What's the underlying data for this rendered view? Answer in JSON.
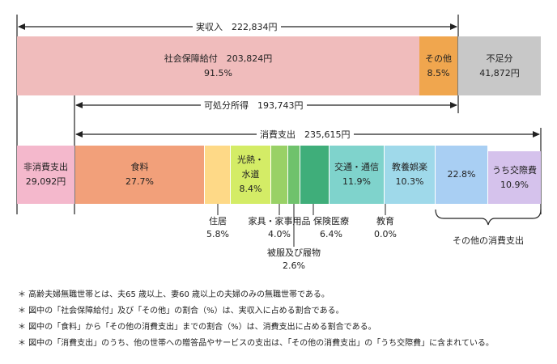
{
  "chart_data": {
    "type": "stacked-horizontal-bar",
    "income_bar": {
      "bracket_label": "実収入　222,834円",
      "segments": [
        {
          "name": "社会保障給付",
          "label": "社会保障給付　203,824円",
          "pct": "91.5%",
          "value": 203824,
          "color": "#f0bcbc"
        },
        {
          "name": "その他",
          "label": "その他",
          "pct": "8.5%",
          "value": 19010,
          "color": "#f0a64e"
        },
        {
          "name": "不足分",
          "label": "不足分",
          "pct": "41,872円",
          "value": 41872,
          "color": "#c8c8c8"
        }
      ]
    },
    "disposable": {
      "bracket_label": "可処分所得　193,743円",
      "value": 193743
    },
    "consumption": {
      "bracket_label": "消費支出　235,615円",
      "value": 235615
    },
    "expense_bar": {
      "segments": [
        {
          "name": "非消費支出",
          "label": "非消費支出",
          "pct": "29,092円",
          "color": "#f4b8cc",
          "kind": "inside"
        },
        {
          "name": "食料",
          "label": "食料",
          "pct": "27.7%",
          "color": "#f2a07a",
          "kind": "inside"
        },
        {
          "name": "住居",
          "label": "住居",
          "pct": "5.8%",
          "color": "#fed987",
          "kind": "callout"
        },
        {
          "name": "光熱・水道",
          "label": "光熱・\n水道",
          "pct": "8.4%",
          "color": "#d4ec66",
          "kind": "inside"
        },
        {
          "name": "家具・家事用品",
          "label": "家具・家事用品",
          "pct": "4.0%",
          "color": "#99d166",
          "kind": "callout"
        },
        {
          "name": "被服及び履物",
          "label": "被服及び履物",
          "pct": "2.6%",
          "color": "#6fc26c",
          "kind": "callout"
        },
        {
          "name": "保険医療",
          "label": "保険医療",
          "pct": "6.4%",
          "color": "#3fae7a",
          "kind": "callout"
        },
        {
          "name": "交通・通信",
          "label": "交通・通信",
          "pct": "11.9%",
          "color": "#7fd3cc",
          "kind": "inside"
        },
        {
          "name": "教育",
          "label": "教育",
          "pct": "0.0%",
          "color": "#9fd9ea",
          "kind": "callout"
        },
        {
          "name": "教養娯楽",
          "label": "教養娯楽",
          "pct": "10.3%",
          "color": "#9fd9ea",
          "kind": "inside"
        },
        {
          "name": "その他の消費支出",
          "label": "",
          "pct": "22.8%",
          "color": "#a9cff3",
          "kind": "inside"
        },
        {
          "name": "うち交際費",
          "label": "うち交際費",
          "pct": "10.9%",
          "color": "#d5c2ec",
          "kind": "inside"
        }
      ],
      "group_label": "その他の消費支出"
    }
  },
  "notes": [
    "＊ 高齢夫婦無職世帯とは、夫65 歳以上、妻60 歳以上の夫婦のみの無職世帯である。",
    "＊ 図中の「社会保障給付」及び「その他」の割合（%）は、実収入に占める割合である。",
    "＊ 図中の「食料」から「その他の消費支出」までの割合（%）は、消費支出に占める割合である。",
    "＊ 図中の「消費支出」のうち、他の世帯への贈答品やサービスの支出は、「その他の消費支出」の「うち交際費」に含まれている。"
  ]
}
